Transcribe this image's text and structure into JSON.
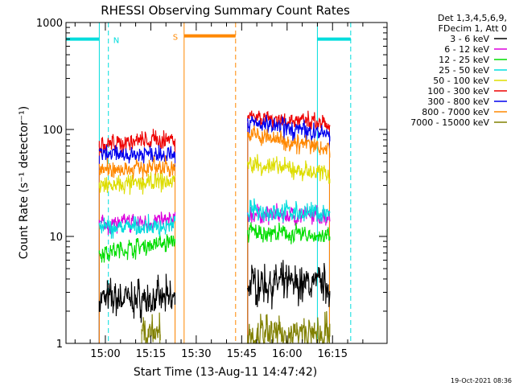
{
  "chart_data": {
    "type": "line",
    "title": "RHESSI Observing Summary Count Rates",
    "xlabel": "Start Time (13-Aug-11 14:47:42)",
    "ylabel": "Count Rate (s⁻¹ detector⁻¹)",
    "yscale": "log",
    "ylim": [
      1,
      1000
    ],
    "xlim": [
      "14:47",
      "16:33"
    ],
    "x_ticks": [
      "15:00",
      "15:15",
      "15:30",
      "15:45",
      "16:00",
      "16:15"
    ],
    "y_ticks": [
      "1",
      "10",
      "100",
      "1000"
    ],
    "grid": false,
    "timestamp": "19-Oct-2021 08:36",
    "legend": {
      "placement": "right",
      "header": [
        "Det 1,3,4,5,6,9,",
        "FDecim 1, Att 0"
      ]
    },
    "series": [
      {
        "name": "3 - 6 keV",
        "color": "#000000",
        "segments": [
          {
            "t": [
              "14:58",
              "15:23"
            ],
            "y": [
              2.6,
              2.6
            ]
          },
          {
            "t": [
              "15:47",
              "16:14"
            ],
            "y": [
              3.6,
              3.6
            ]
          }
        ]
      },
      {
        "name": "6 - 12 keV",
        "color": "#dd00dd",
        "segments": [
          {
            "t": [
              "14:58",
              "15:23"
            ],
            "y": [
              13,
              14
            ]
          },
          {
            "t": [
              "15:47",
              "16:14"
            ],
            "y": [
              16,
              15.5
            ]
          }
        ]
      },
      {
        "name": "12 - 25 keV",
        "color": "#00dd00",
        "segments": [
          {
            "t": [
              "14:58",
              "15:23"
            ],
            "y": [
              7,
              9
            ]
          },
          {
            "t": [
              "15:47",
              "16:14"
            ],
            "y": [
              11,
              10
            ]
          }
        ]
      },
      {
        "name": "25 - 50 keV",
        "color": "#00dddd",
        "segments": [
          {
            "t": [
              "14:58",
              "15:23"
            ],
            "y": [
              12,
              12.5
            ]
          },
          {
            "t": [
              "15:47",
              "16:14"
            ],
            "y": [
              17.5,
              16.5
            ]
          }
        ]
      },
      {
        "name": "50 - 100 keV",
        "color": "#dddd00",
        "segments": [
          {
            "t": [
              "14:58",
              "15:23"
            ],
            "y": [
              29,
              33
            ]
          },
          {
            "t": [
              "15:47",
              "16:14"
            ],
            "y": [
              48,
              38
            ]
          }
        ]
      },
      {
        "name": "100 - 300 keV",
        "color": "#ee0000",
        "segments": [
          {
            "t": [
              "14:58",
              "15:23"
            ],
            "y": [
              73,
              82
            ]
          },
          {
            "t": [
              "15:47",
              "16:14"
            ],
            "y": [
              135,
              110
            ]
          }
        ]
      },
      {
        "name": "300 - 800 keV",
        "color": "#0000ee",
        "segments": [
          {
            "t": [
              "14:58",
              "15:23"
            ],
            "y": [
              57,
              61
            ]
          },
          {
            "t": [
              "15:47",
              "16:14"
            ],
            "y": [
              115,
              90
            ]
          }
        ]
      },
      {
        "name": "800 - 7000 keV",
        "color": "#ff8800",
        "segments": [
          {
            "t": [
              "14:58",
              "15:23"
            ],
            "y": [
              42,
              45
            ]
          },
          {
            "t": [
              "15:47",
              "16:14"
            ],
            "y": [
              90,
              66
            ]
          }
        ]
      },
      {
        "name": "7000 - 15000 keV",
        "color": "#808000",
        "segments": [
          {
            "t": [
              "15:12",
              "15:18"
            ],
            "y": [
              1.3,
              1.3
            ]
          },
          {
            "t": [
              "15:47",
              "16:14"
            ],
            "y": [
              1.2,
              1.2
            ]
          }
        ]
      }
    ],
    "annotations": [
      {
        "label": "N",
        "color": "#00dddd",
        "bar": [
          "14:47",
          "14:58"
        ],
        "y": 700,
        "lines": [
          {
            "t": "14:58",
            "style": "solid"
          },
          {
            "t": "15:01",
            "style": "dashed"
          }
        ]
      },
      {
        "label": "S",
        "color": "#ff8800",
        "bar": [
          "15:26",
          "15:43"
        ],
        "y": 750,
        "lines": [
          {
            "t": "15:26",
            "style": "solid"
          },
          {
            "t": "15:43",
            "style": "dashed"
          }
        ]
      },
      {
        "label": "",
        "color": "#00dddd",
        "bar": [
          "16:10",
          "16:21"
        ],
        "y": 700,
        "lines": [
          {
            "t": "16:10",
            "style": "solid"
          },
          {
            "t": "16:21",
            "style": "dashed"
          }
        ]
      }
    ]
  }
}
